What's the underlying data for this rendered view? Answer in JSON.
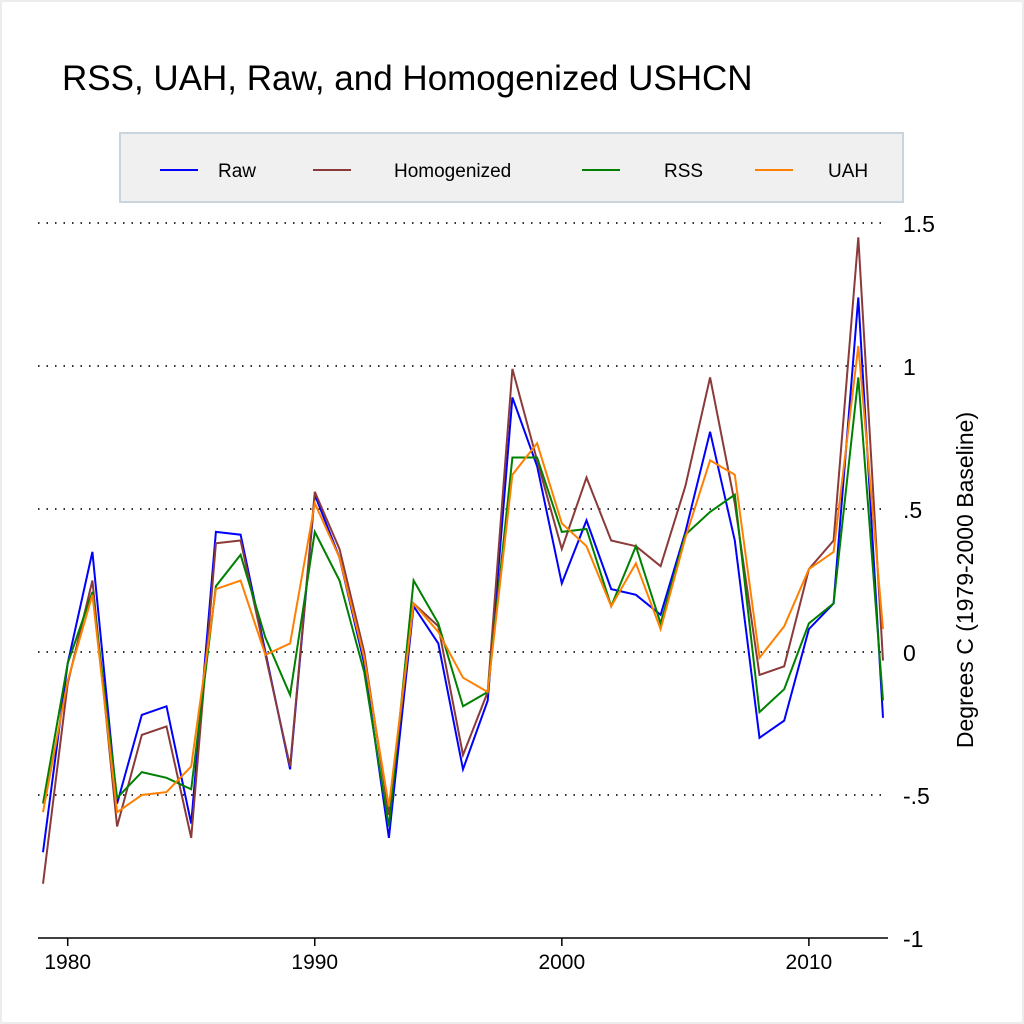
{
  "chart_data": {
    "type": "line",
    "title": "RSS, UAH, Raw, and Homogenized USHCN",
    "xlabel": "",
    "ylabel": "Degrees C (1979-2000 Baseline)",
    "xlim": [
      1979,
      2013
    ],
    "ylim": [
      -1,
      1.5
    ],
    "x_ticks": [
      1980,
      1990,
      2000,
      2010
    ],
    "x_tick_labels": [
      "1980",
      "1990",
      "2000",
      "2010"
    ],
    "y_ticks": [
      1.5,
      1,
      0.5,
      0,
      -0.5,
      -1
    ],
    "y_tick_labels": [
      "1.5",
      "1",
      ".5",
      "0",
      "-.5",
      "-1"
    ],
    "y_axis_side": "right",
    "grid": "horizontal dotted",
    "legend_position": "top",
    "x": [
      1979,
      1980,
      1981,
      1982,
      1983,
      1984,
      1985,
      1986,
      1987,
      1988,
      1989,
      1990,
      1991,
      1992,
      1993,
      1994,
      1995,
      1996,
      1997,
      1998,
      1999,
      2000,
      2001,
      2002,
      2003,
      2004,
      2005,
      2006,
      2007,
      2008,
      2009,
      2010,
      2011,
      2012,
      2013
    ],
    "series": [
      {
        "name": "Raw",
        "color": "#0000ff",
        "values": [
          -0.7,
          -0.04,
          0.35,
          -0.53,
          -0.22,
          -0.19,
          -0.6,
          0.42,
          0.41,
          0.0,
          -0.41,
          0.55,
          0.33,
          -0.04,
          -0.65,
          0.16,
          0.03,
          -0.41,
          -0.17,
          0.89,
          0.65,
          0.24,
          0.46,
          0.22,
          0.2,
          0.13,
          0.42,
          0.77,
          0.39,
          -0.3,
          -0.24,
          0.08,
          0.17,
          1.24,
          -0.23
        ]
      },
      {
        "name": "Homogenized",
        "color": "#8b3a3a",
        "values": [
          -0.81,
          -0.11,
          0.25,
          -0.61,
          -0.29,
          -0.26,
          -0.65,
          0.38,
          0.39,
          -0.01,
          -0.4,
          0.56,
          0.36,
          0.0,
          -0.57,
          0.17,
          0.09,
          -0.36,
          -0.14,
          0.99,
          0.67,
          0.36,
          0.61,
          0.39,
          0.37,
          0.3,
          0.58,
          0.96,
          0.52,
          -0.08,
          -0.05,
          0.29,
          0.39,
          1.45,
          -0.03
        ]
      },
      {
        "name": "RSS",
        "color": "#008000",
        "values": [
          -0.53,
          -0.04,
          0.21,
          -0.51,
          -0.42,
          -0.44,
          -0.48,
          0.23,
          0.34,
          0.05,
          -0.15,
          0.42,
          0.25,
          -0.07,
          -0.61,
          0.25,
          0.1,
          -0.19,
          -0.14,
          0.68,
          0.68,
          0.42,
          0.43,
          0.16,
          0.37,
          0.1,
          0.41,
          0.49,
          0.55,
          -0.21,
          -0.13,
          0.1,
          0.17,
          0.96,
          -0.17
        ]
      },
      {
        "name": "UAH",
        "color": "#ff8000",
        "values": [
          -0.56,
          -0.1,
          0.2,
          -0.56,
          -0.5,
          -0.49,
          -0.4,
          0.22,
          0.25,
          -0.01,
          0.03,
          0.52,
          0.33,
          -0.02,
          -0.54,
          0.17,
          0.07,
          -0.09,
          -0.14,
          0.62,
          0.73,
          0.45,
          0.37,
          0.16,
          0.31,
          0.08,
          0.4,
          0.67,
          0.62,
          -0.02,
          0.09,
          0.29,
          0.35,
          1.07,
          0.08
        ]
      }
    ]
  }
}
